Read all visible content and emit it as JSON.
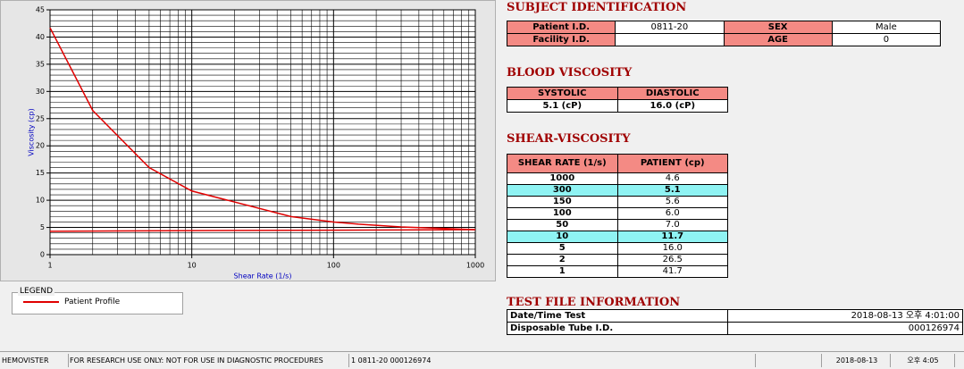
{
  "chart_data": {
    "type": "line",
    "xlabel": "Shear Rate (1/s)",
    "ylabel": "Viscosity (cp)",
    "xscale": "log",
    "xlim": [
      1,
      1000
    ],
    "xticks": [
      1,
      10,
      100,
      1000
    ],
    "x_minor_ticks": [
      2,
      3,
      4,
      5,
      6,
      7,
      8,
      9,
      20,
      30,
      40,
      50,
      60,
      70,
      80,
      90,
      200,
      300,
      400,
      500,
      600,
      700,
      800,
      900
    ],
    "ylim": [
      0,
      45
    ],
    "yticks": [
      0,
      5,
      10,
      15,
      20,
      25,
      30,
      35,
      40,
      45
    ],
    "y_minor_ticks": [
      1,
      2,
      3,
      4,
      6,
      7,
      8,
      9,
      11,
      12,
      13,
      14,
      16,
      17,
      18,
      19,
      21,
      22,
      23,
      24,
      26,
      27,
      28,
      29,
      31,
      32,
      33,
      34,
      36,
      37,
      38,
      39,
      41,
      42,
      43,
      44
    ],
    "grid": true,
    "legend_title": "LEGEND",
    "series": [
      {
        "name": "Patient Profile",
        "color": "#e00000",
        "x": [
          1,
          2,
          5,
          10,
          50,
          100,
          150,
          300,
          1000
        ],
        "values": [
          41.7,
          26.5,
          16.0,
          11.7,
          7.0,
          6.0,
          5.6,
          5.1,
          4.6
        ]
      },
      {
        "color": "#e00000",
        "x": [
          1,
          1000
        ],
        "values": [
          4.3,
          4.6
        ]
      }
    ]
  },
  "subject": {
    "title": "SUBJECT IDENTIFICATION",
    "fields": [
      {
        "label": "Patient I.D.",
        "value": "0811-20"
      },
      {
        "label": "SEX",
        "value": "Male"
      },
      {
        "label": "Facility I.D."
      },
      {
        "label": "AGE",
        "value": "0"
      }
    ]
  },
  "blood": {
    "title": "BLOOD VISCOSITY",
    "headers": [
      "SYSTOLIC",
      "DIASTOLIC"
    ],
    "values": [
      "5.1 (cP)",
      "16.0 (cP)"
    ]
  },
  "shear": {
    "title": "SHEAR-VISCOSITY",
    "headers": [
      "SHEAR RATE (1/s)",
      "PATIENT (cp)"
    ],
    "highlight_rows": [
      1,
      5
    ],
    "rows": [
      [
        "1000",
        "4.6"
      ],
      [
        "300",
        "5.1"
      ],
      [
        "150",
        "5.6"
      ],
      [
        "100",
        "6.0"
      ],
      [
        "50",
        "7.0"
      ],
      [
        "10",
        "11.7"
      ],
      [
        "5",
        "16.0"
      ],
      [
        "2",
        "26.5"
      ],
      [
        "1",
        "41.7"
      ]
    ]
  },
  "testfile": {
    "title": "TEST FILE INFORMATION",
    "rows": [
      [
        "Date/Time Test",
        "2018-08-13  오후 4:01:00"
      ],
      [
        "Disposable Tube I.D.",
        "000126974"
      ]
    ]
  },
  "status": [
    "HEMOVISTER",
    "FOR RESEARCH USE ONLY: NOT FOR USE IN DIAGNOSTIC PROCEDURES",
    "1  0811-20  000126974",
    "2018-08-13",
    "오후 4:05"
  ]
}
